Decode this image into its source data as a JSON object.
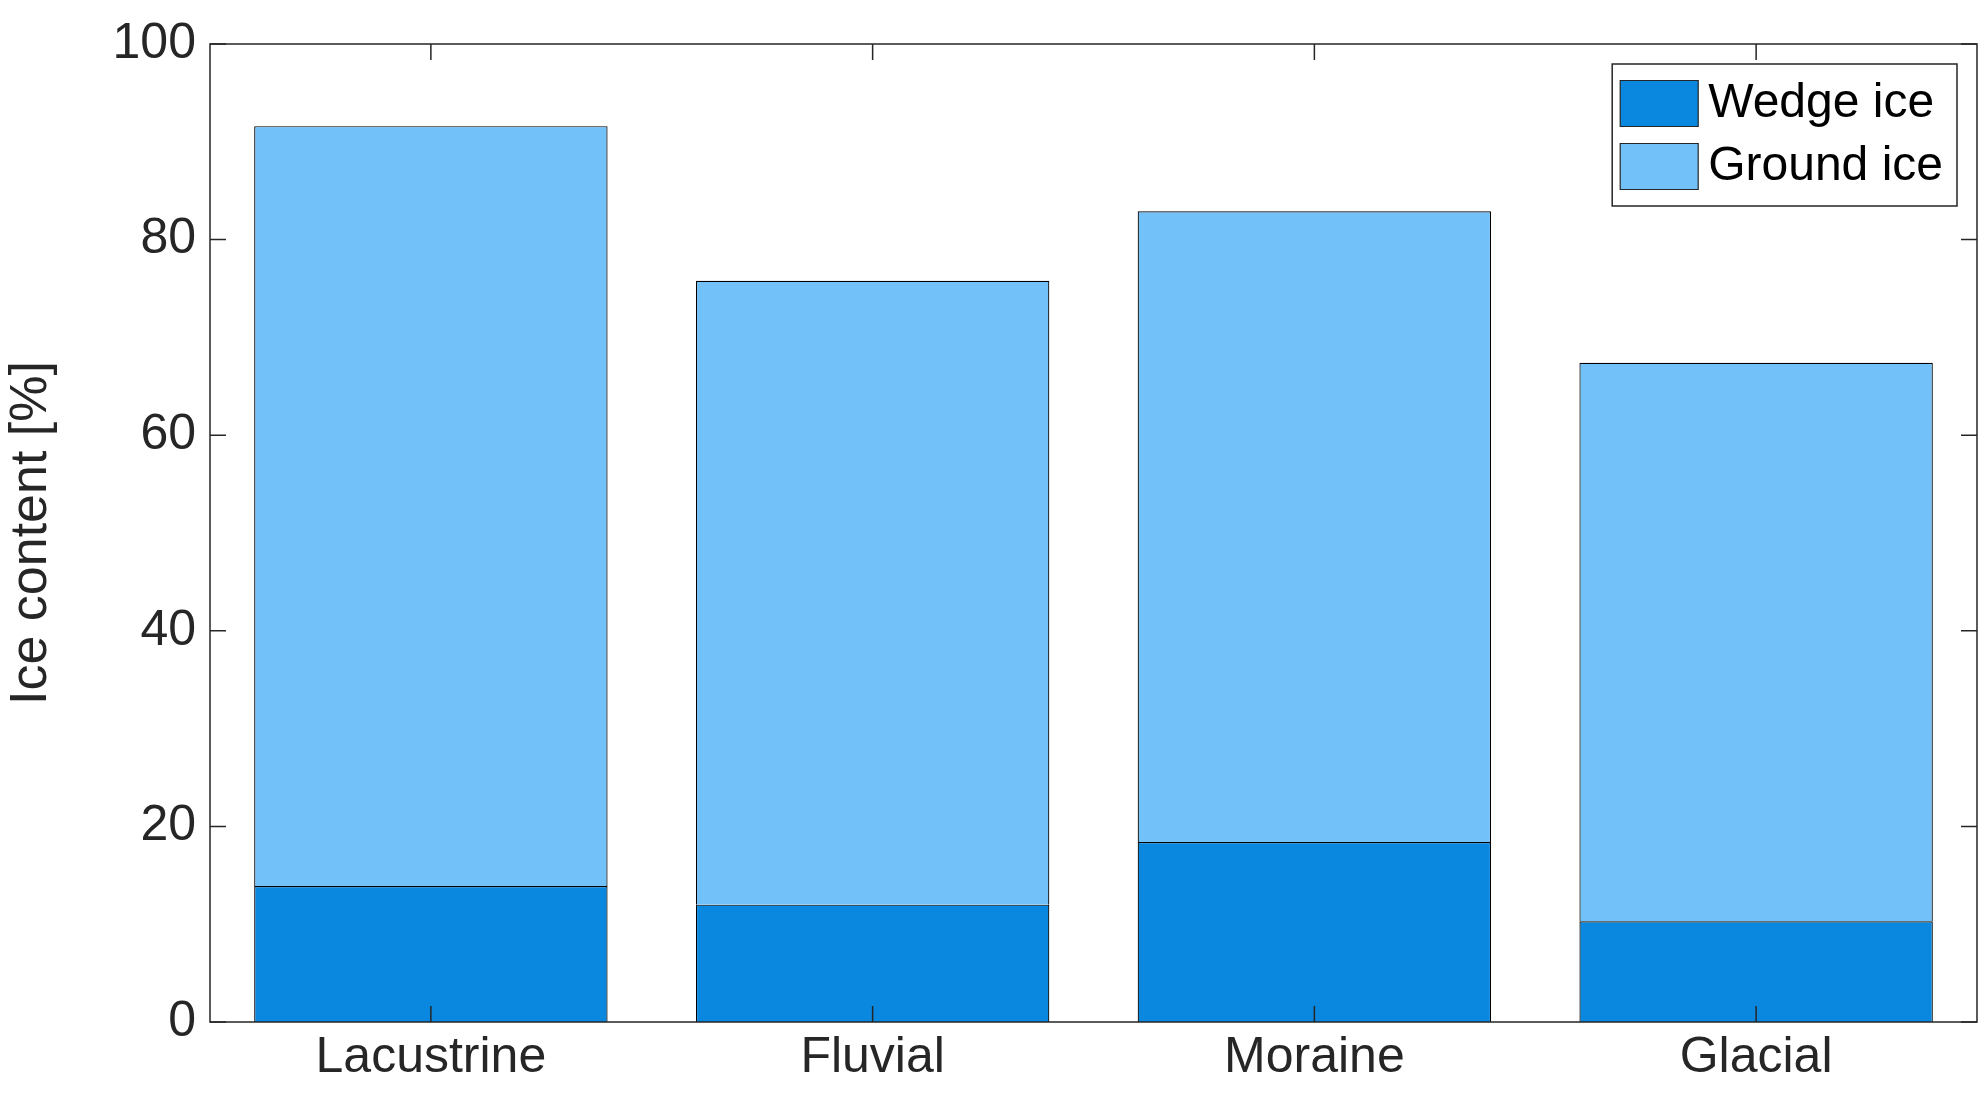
{
  "chart_data": {
    "type": "bar",
    "stacked": true,
    "ylabel": "Ice content [%]",
    "categories": [
      "Lacustrine",
      "Fluvial",
      "Moraine",
      "Glacial"
    ],
    "series": [
      {
        "name": "Wedge ice",
        "color": "#0a87de",
        "values": [
          13.9,
          12.0,
          18.4,
          10.3
        ]
      },
      {
        "name": "Ground ice",
        "color": "#73c1f9",
        "values": [
          77.7,
          63.8,
          64.5,
          57.1
        ]
      }
    ],
    "ylim": [
      0,
      100
    ],
    "yticks": [
      0,
      20,
      40,
      60,
      80,
      100
    ],
    "grid": false,
    "legend": "top right"
  }
}
